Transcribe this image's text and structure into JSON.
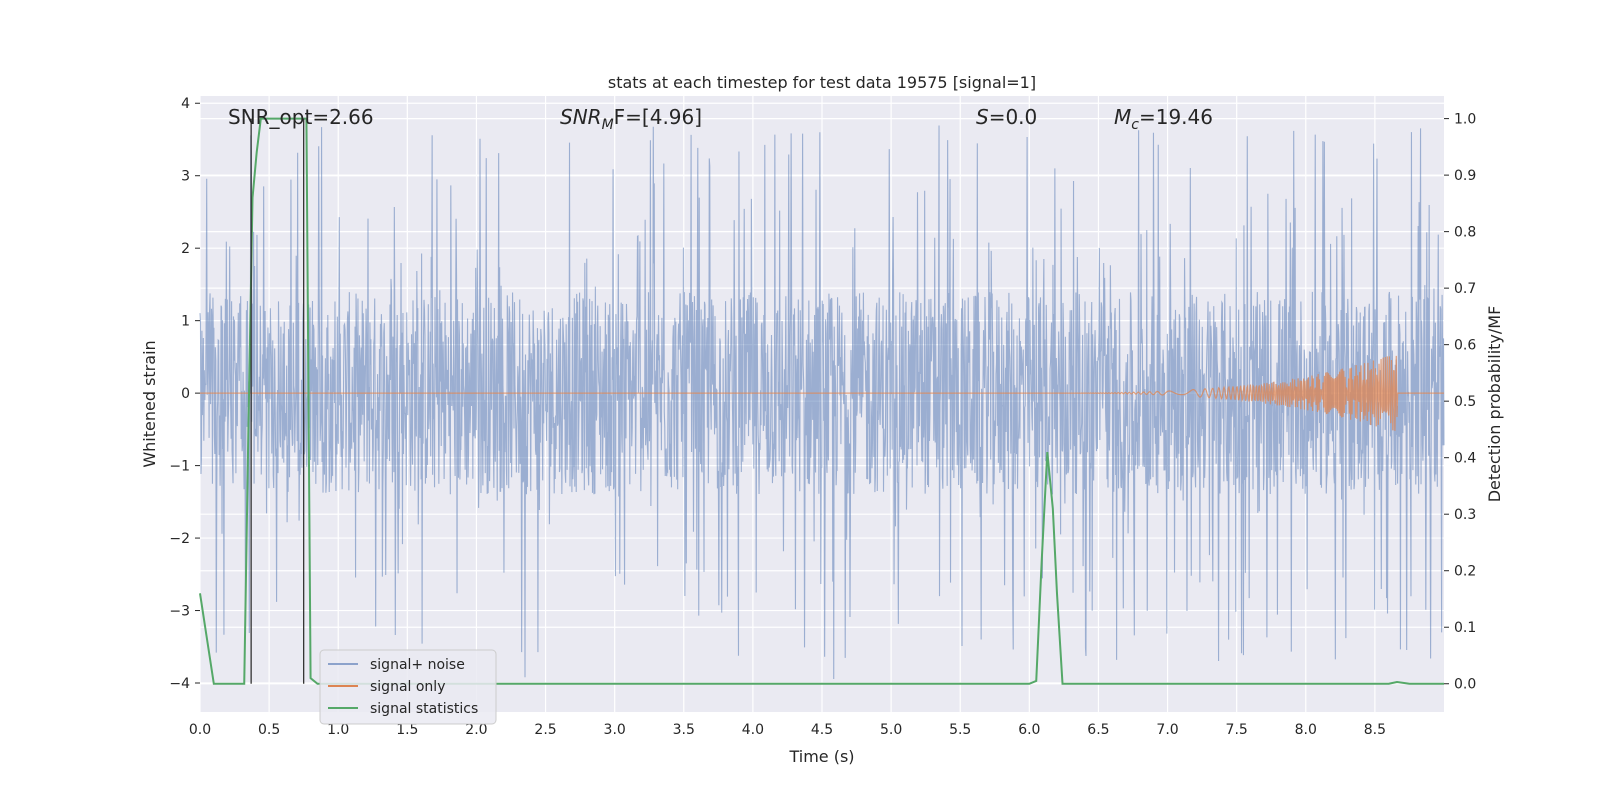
{
  "chart_data": {
    "type": "line",
    "title": "stats at each timestep for test data 19575 [signal=1]",
    "xlabel": "Time (s)",
    "ylabel": "Whitened strain",
    "y2label": "Detection probability/MF",
    "xlim": [
      0.0,
      9.0
    ],
    "ylim": [
      -4.4,
      4.1
    ],
    "y2lim": [
      -0.05,
      1.04
    ],
    "xticks": [
      "0.0",
      "0.5",
      "1.0",
      "1.5",
      "2.0",
      "2.5",
      "3.0",
      "3.5",
      "4.0",
      "4.5",
      "5.0",
      "5.5",
      "6.0",
      "6.5",
      "7.0",
      "7.5",
      "8.0",
      "8.5"
    ],
    "yticks": [
      "4",
      "3",
      "2",
      "1",
      "0",
      "−1",
      "−2",
      "−3",
      "−4"
    ],
    "y2ticks": [
      "1.0",
      "0.9",
      "0.8",
      "0.7",
      "0.6",
      "0.5",
      "0.4",
      "0.3",
      "0.2",
      "0.1",
      "0.0"
    ],
    "grid": true,
    "legend_position": "lower-left",
    "annotations": {
      "snr_opt": "SNR_opt=2.66",
      "snr_mf_base": "SNR",
      "snr_mf_sub": "M",
      "snr_mf_rest": "F=[4.96]",
      "s_var": "S",
      "s_rest": "=0.0",
      "mc_var": "M",
      "mc_sub": "c",
      "mc_rest": "=19.46"
    },
    "vertical_markers_x": [
      0.37,
      0.75
    ],
    "series": [
      {
        "name": "signal+ noise",
        "color": "#4c72b0",
        "axis": "left",
        "noise": {
          "core_amplitude": 1.4,
          "spike_max": 3.7,
          "spike_min": -4.0
        }
      },
      {
        "name": "signal only",
        "color": "#dd8452",
        "axis": "left",
        "chirp": {
          "flat_until": 6.0,
          "peak_time": 8.66,
          "peak_amplitude": 0.55
        }
      },
      {
        "name": "signal statistics",
        "color": "#55a868",
        "axis": "right",
        "x": [
          0.0,
          0.05,
          0.1,
          0.2,
          0.3,
          0.32,
          0.35,
          0.38,
          0.41,
          0.44,
          0.5,
          0.6,
          0.7,
          0.74,
          0.77,
          0.8,
          0.85,
          0.9,
          1.0,
          1.5,
          2.0,
          2.5,
          3.0,
          3.5,
          4.0,
          4.5,
          5.0,
          5.5,
          6.0,
          6.05,
          6.09,
          6.13,
          6.17,
          6.2,
          6.24,
          6.3,
          6.5,
          7.0,
          7.5,
          8.0,
          8.5,
          8.6,
          8.66,
          8.75,
          8.8,
          8.9,
          9.0
        ],
        "y": [
          0.16,
          0.08,
          0.0,
          0.0,
          0.0,
          0.0,
          0.45,
          0.86,
          0.94,
          1.0,
          1.0,
          1.0,
          1.0,
          1.0,
          1.0,
          0.01,
          0.0,
          0.0,
          0.0,
          0.0,
          0.0,
          0.0,
          0.0,
          0.0,
          0.0,
          0.0,
          0.0,
          0.0,
          0.0,
          0.005,
          0.22,
          0.41,
          0.31,
          0.16,
          0.0,
          0.0,
          0.0,
          0.0,
          0.0,
          0.0,
          0.0,
          0.0,
          0.003,
          0.0,
          0.0,
          0.0,
          0.0
        ]
      }
    ]
  }
}
